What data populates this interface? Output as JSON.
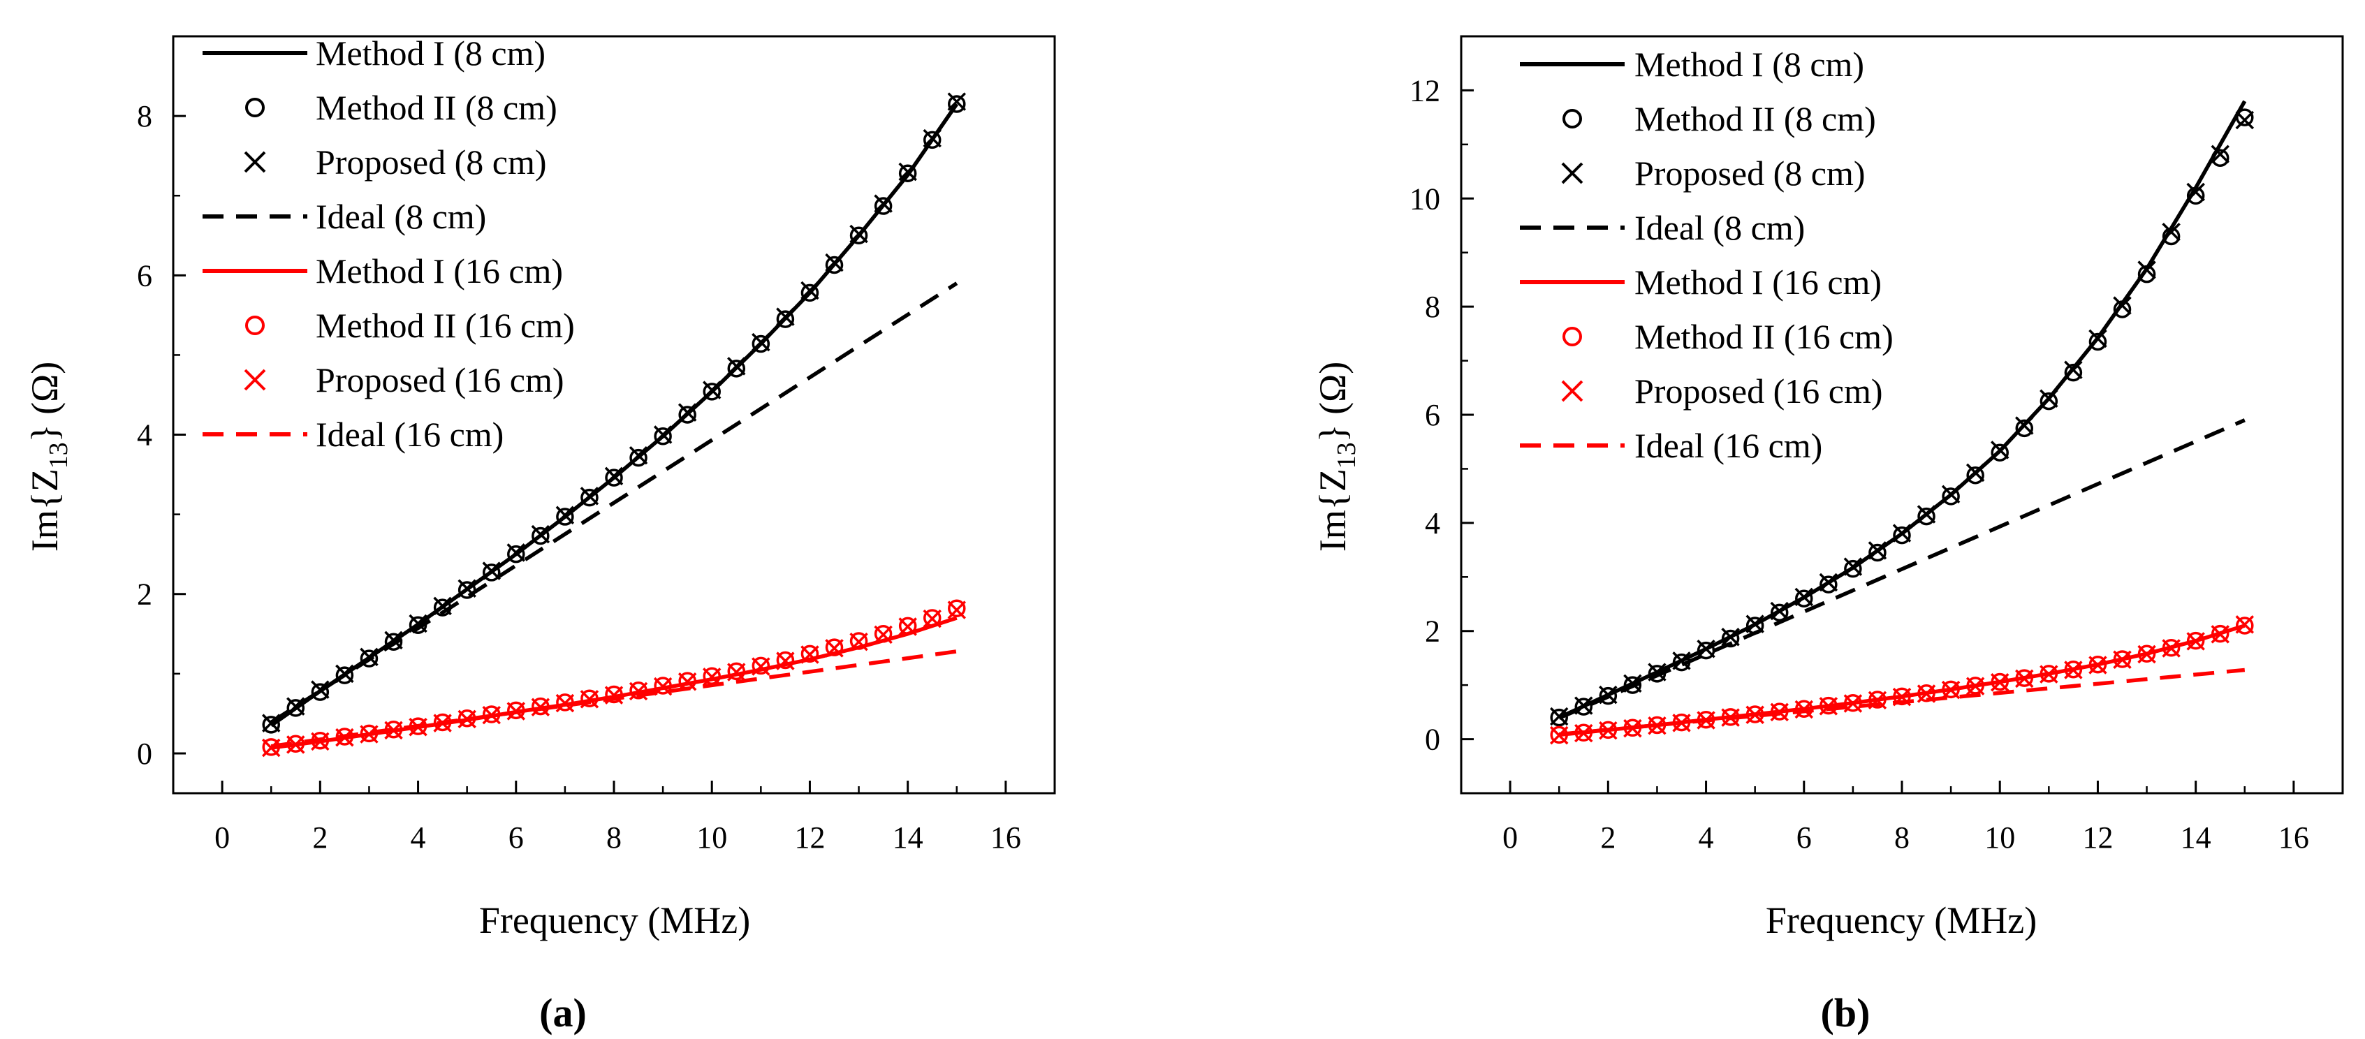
{
  "chart_data": [
    {
      "type": "line",
      "panel_label": "(a)",
      "xlabel": "Frequency (MHz)",
      "ylabel_main": "Im{Z",
      "ylabel_sub": "13",
      "ylabel_tail": "} (Ω)",
      "xlim": [
        -1,
        17
      ],
      "ylim": [
        -0.5,
        9
      ],
      "xticks": [
        0,
        2,
        4,
        6,
        8,
        10,
        12,
        14,
        16
      ],
      "yticks": [
        0,
        2,
        4,
        6,
        8
      ],
      "legend_position": "top-left",
      "series": [
        {
          "name": "Method I (8 cm)",
          "color": "#000000",
          "style": "solid",
          "x": [
            1,
            2,
            3,
            4,
            5,
            6,
            7,
            8,
            9,
            10,
            11,
            12,
            13,
            14,
            15
          ],
          "y": [
            0.35,
            0.78,
            1.2,
            1.62,
            2.06,
            2.5,
            2.97,
            3.46,
            3.98,
            4.54,
            5.14,
            5.78,
            6.5,
            7.26,
            8.15
          ]
        },
        {
          "name": "Method II (8 cm)",
          "color": "#000000",
          "marker": "circle",
          "x": [
            1,
            1.5,
            2,
            2.5,
            3,
            3.5,
            4,
            4.5,
            5,
            5.5,
            6,
            6.5,
            7,
            7.5,
            8,
            8.5,
            9,
            9.5,
            10,
            10.5,
            11,
            11.5,
            12,
            12.5,
            13,
            13.5,
            14,
            14.5,
            15
          ],
          "y": [
            0.36,
            0.57,
            0.77,
            0.98,
            1.19,
            1.4,
            1.61,
            1.83,
            2.05,
            2.27,
            2.5,
            2.73,
            2.97,
            3.21,
            3.46,
            3.71,
            3.98,
            4.25,
            4.54,
            4.83,
            5.14,
            5.45,
            5.78,
            6.13,
            6.5,
            6.87,
            7.28,
            7.7,
            8.15
          ]
        },
        {
          "name": "Proposed (8 cm)",
          "color": "#000000",
          "marker": "cross",
          "x": [
            1,
            1.5,
            2,
            2.5,
            3,
            3.5,
            4,
            4.5,
            5,
            5.5,
            6,
            6.5,
            7,
            7.5,
            8,
            8.5,
            9,
            9.5,
            10,
            10.5,
            11,
            11.5,
            12,
            12.5,
            13,
            13.5,
            14,
            14.5,
            15
          ],
          "y": [
            0.38,
            0.59,
            0.8,
            1.0,
            1.21,
            1.42,
            1.63,
            1.85,
            2.07,
            2.29,
            2.52,
            2.75,
            2.99,
            3.23,
            3.48,
            3.74,
            4.0,
            4.28,
            4.56,
            4.86,
            5.16,
            5.48,
            5.81,
            6.16,
            6.52,
            6.9,
            7.3,
            7.72,
            8.18
          ]
        },
        {
          "name": "Ideal (8 cm)",
          "color": "#000000",
          "style": "dashed",
          "x": [
            1,
            15
          ],
          "y": [
            0.39,
            5.9
          ]
        },
        {
          "name": "Method I (16 cm)",
          "color": "#ff0000",
          "style": "solid",
          "x": [
            1,
            2,
            3,
            4,
            5,
            6,
            7,
            8,
            9,
            10,
            11,
            12,
            13,
            14,
            15
          ],
          "y": [
            0.07,
            0.15,
            0.24,
            0.33,
            0.42,
            0.52,
            0.61,
            0.71,
            0.82,
            0.93,
            1.05,
            1.18,
            1.33,
            1.5,
            1.7
          ]
        },
        {
          "name": "Method II (16 cm)",
          "color": "#ff0000",
          "marker": "circle",
          "x": [
            1,
            1.5,
            2,
            2.5,
            3,
            3.5,
            4,
            4.5,
            5,
            5.5,
            6,
            6.5,
            7,
            7.5,
            8,
            8.5,
            9,
            9.5,
            10,
            10.5,
            11,
            11.5,
            12,
            12.5,
            13,
            13.5,
            14,
            14.5,
            15
          ],
          "y": [
            0.08,
            0.12,
            0.16,
            0.21,
            0.25,
            0.3,
            0.34,
            0.39,
            0.44,
            0.49,
            0.54,
            0.59,
            0.64,
            0.69,
            0.74,
            0.79,
            0.85,
            0.91,
            0.97,
            1.03,
            1.1,
            1.17,
            1.25,
            1.33,
            1.41,
            1.5,
            1.6,
            1.7,
            1.82
          ]
        },
        {
          "name": "Proposed (16 cm)",
          "color": "#ff0000",
          "marker": "cross",
          "x": [
            1,
            1.5,
            2,
            2.5,
            3,
            3.5,
            4,
            4.5,
            5,
            5.5,
            6,
            6.5,
            7,
            7.5,
            8,
            8.5,
            9,
            9.5,
            10,
            10.5,
            11,
            11.5,
            12,
            12.5,
            13,
            13.5,
            14,
            14.5,
            15
          ],
          "y": [
            0.07,
            0.11,
            0.15,
            0.2,
            0.24,
            0.29,
            0.33,
            0.38,
            0.43,
            0.48,
            0.53,
            0.58,
            0.63,
            0.68,
            0.73,
            0.78,
            0.84,
            0.9,
            0.96,
            1.02,
            1.09,
            1.16,
            1.24,
            1.32,
            1.4,
            1.49,
            1.59,
            1.69,
            1.8
          ]
        },
        {
          "name": "Ideal (16 cm)",
          "color": "#ff0000",
          "style": "dashed",
          "x": [
            1,
            15
          ],
          "y": [
            0.09,
            1.28
          ]
        }
      ]
    },
    {
      "type": "line",
      "panel_label": "(b)",
      "xlabel": "Frequency (MHz)",
      "ylabel_main": "Im{Z",
      "ylabel_sub": "13",
      "ylabel_tail": "} (Ω)",
      "xlim": [
        -1,
        17
      ],
      "ylim": [
        -1,
        13
      ],
      "xticks": [
        0,
        2,
        4,
        6,
        8,
        10,
        12,
        14,
        16
      ],
      "yticks": [
        0,
        2,
        4,
        6,
        8,
        10,
        12
      ],
      "legend_position": "top-left",
      "series": [
        {
          "name": "Method I (8 cm)",
          "color": "#000000",
          "style": "solid",
          "x": [
            1,
            2,
            3,
            4,
            5,
            6,
            7,
            8,
            9,
            10,
            11,
            12,
            13,
            14,
            15
          ],
          "y": [
            0.4,
            0.82,
            1.24,
            1.67,
            2.12,
            2.62,
            3.17,
            3.8,
            4.52,
            5.33,
            6.3,
            7.42,
            8.7,
            10.2,
            11.8
          ]
        },
        {
          "name": "Method II (8 cm)",
          "color": "#000000",
          "marker": "circle",
          "x": [
            1,
            1.5,
            2,
            2.5,
            3,
            3.5,
            4,
            4.5,
            5,
            5.5,
            6,
            6.5,
            7,
            7.5,
            8,
            8.5,
            9,
            9.5,
            10,
            10.5,
            11,
            11.5,
            12,
            12.5,
            13,
            13.5,
            14,
            14.5,
            15
          ],
          "y": [
            0.4,
            0.6,
            0.8,
            1.0,
            1.21,
            1.42,
            1.64,
            1.86,
            2.1,
            2.34,
            2.6,
            2.86,
            3.15,
            3.45,
            3.77,
            4.12,
            4.49,
            4.88,
            5.3,
            5.75,
            6.25,
            6.78,
            7.35,
            7.95,
            8.6,
            9.3,
            10.05,
            10.75,
            11.5
          ]
        },
        {
          "name": "Proposed (8 cm)",
          "color": "#000000",
          "marker": "cross",
          "x": [
            1,
            1.5,
            2,
            2.5,
            3,
            3.5,
            4,
            4.5,
            5,
            5.5,
            6,
            6.5,
            7,
            7.5,
            8,
            8.5,
            9,
            9.5,
            10,
            10.5,
            11,
            11.5,
            12,
            12.5,
            13,
            13.5,
            14,
            14.5,
            15
          ],
          "y": [
            0.42,
            0.62,
            0.82,
            1.03,
            1.24,
            1.45,
            1.67,
            1.89,
            2.13,
            2.37,
            2.63,
            2.9,
            3.19,
            3.49,
            3.81,
            4.16,
            4.53,
            4.93,
            5.35,
            5.8,
            6.3,
            6.83,
            7.41,
            8.02,
            8.68,
            9.38,
            10.12,
            10.82,
            11.45
          ]
        },
        {
          "name": "Ideal (8 cm)",
          "color": "#000000",
          "style": "dashed",
          "x": [
            1,
            15
          ],
          "y": [
            0.39,
            5.9
          ]
        },
        {
          "name": "Method I (16 cm)",
          "color": "#ff0000",
          "style": "solid",
          "x": [
            1,
            2,
            3,
            4,
            5,
            6,
            7,
            8,
            9,
            10,
            11,
            12,
            13,
            14,
            15
          ],
          "y": [
            0.08,
            0.17,
            0.26,
            0.36,
            0.46,
            0.56,
            0.67,
            0.79,
            0.92,
            1.06,
            1.21,
            1.38,
            1.58,
            1.82,
            2.1
          ]
        },
        {
          "name": "Method II (16 cm)",
          "color": "#ff0000",
          "marker": "circle",
          "x": [
            1,
            1.5,
            2,
            2.5,
            3,
            3.5,
            4,
            4.5,
            5,
            5.5,
            6,
            6.5,
            7,
            7.5,
            8,
            8.5,
            9,
            9.5,
            10,
            10.5,
            11,
            11.5,
            12,
            12.5,
            13,
            13.5,
            14,
            14.5,
            15
          ],
          "y": [
            0.08,
            0.12,
            0.17,
            0.21,
            0.26,
            0.31,
            0.36,
            0.41,
            0.46,
            0.51,
            0.56,
            0.62,
            0.67,
            0.73,
            0.79,
            0.85,
            0.92,
            0.99,
            1.06,
            1.13,
            1.21,
            1.29,
            1.38,
            1.48,
            1.58,
            1.69,
            1.82,
            1.95,
            2.1
          ]
        },
        {
          "name": "Proposed (16 cm)",
          "color": "#ff0000",
          "marker": "cross",
          "x": [
            1,
            1.5,
            2,
            2.5,
            3,
            3.5,
            4,
            4.5,
            5,
            5.5,
            6,
            6.5,
            7,
            7.5,
            8,
            8.5,
            9,
            9.5,
            10,
            10.5,
            11,
            11.5,
            12,
            12.5,
            13,
            13.5,
            14,
            14.5,
            15
          ],
          "y": [
            0.07,
            0.11,
            0.16,
            0.2,
            0.25,
            0.3,
            0.35,
            0.4,
            0.45,
            0.5,
            0.55,
            0.61,
            0.66,
            0.72,
            0.78,
            0.84,
            0.91,
            0.98,
            1.05,
            1.12,
            1.2,
            1.28,
            1.37,
            1.47,
            1.57,
            1.68,
            1.81,
            1.94,
            2.12
          ]
        },
        {
          "name": "Ideal (16 cm)",
          "color": "#ff0000",
          "style": "dashed",
          "x": [
            1,
            15
          ],
          "y": [
            0.09,
            1.28
          ]
        }
      ]
    }
  ]
}
